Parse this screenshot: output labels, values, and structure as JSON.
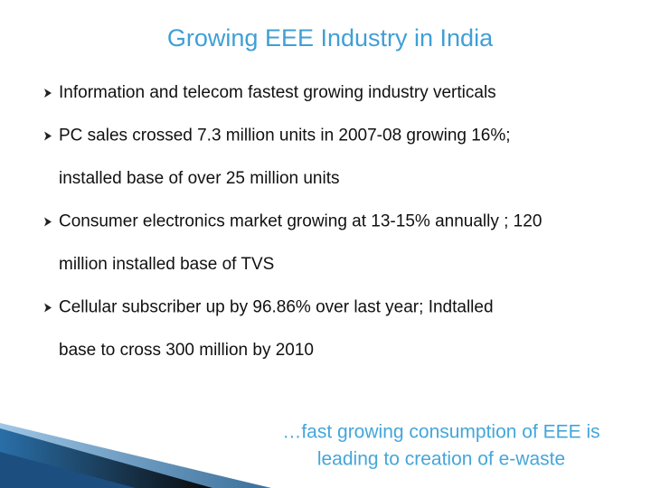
{
  "title": "Growing EEE Industry in India",
  "bullets": [
    [
      "Information and telecom fastest growing industry verticals"
    ],
    [
      "PC sales crossed 7.3 million units in 2007-08 growing 16%;",
      "installed base of over 25 million units"
    ],
    [
      "Consumer electronics market growing at 13-15% annually ; 120",
      "million installed base of TVS"
    ],
    [
      "Cellular subscriber up by 96.86% over last year; Indtalled",
      "base to cross 300 million by 2010"
    ]
  ],
  "note": [
    "…fast growing consumption of EEE is",
    "leading to creation of e-waste"
  ]
}
